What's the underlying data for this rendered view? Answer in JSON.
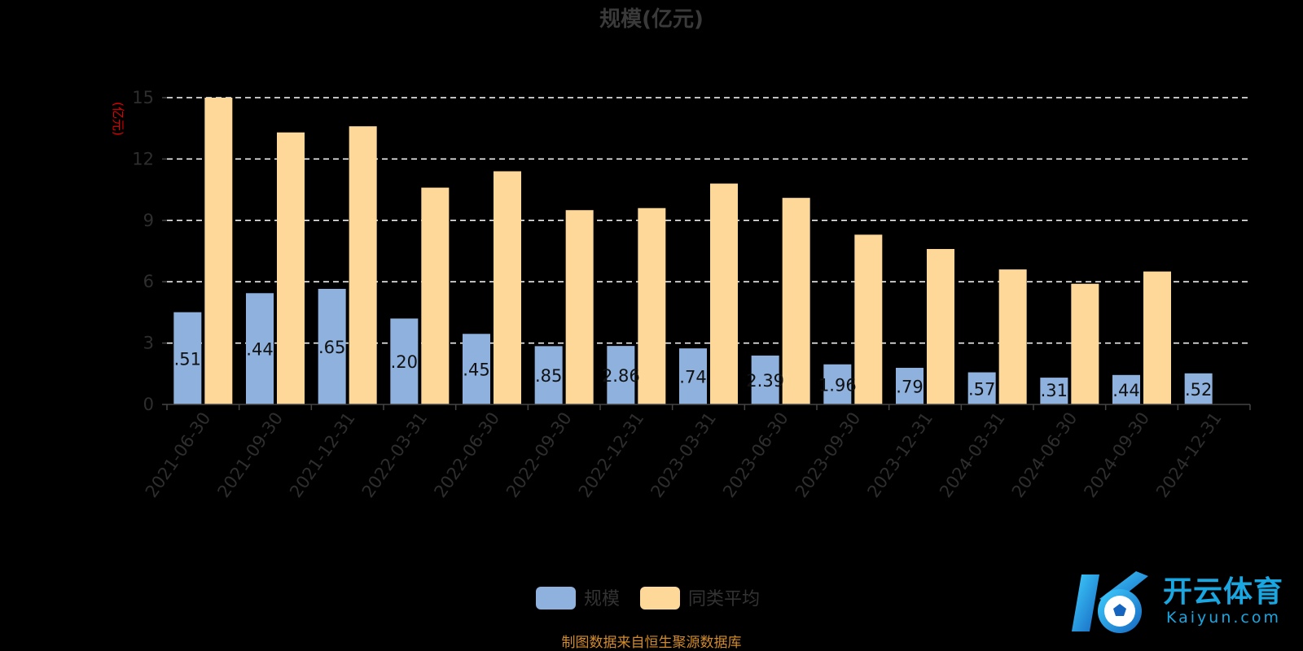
{
  "chart_data": {
    "type": "bar",
    "title": "规模(亿元)",
    "ylabel": "(亿元)",
    "ylim": [
      0,
      15
    ],
    "yticks": [
      "0",
      "3",
      "6",
      "9",
      "12",
      "15"
    ],
    "grid": true,
    "categories": [
      "2021-06-30",
      "2021-09-30",
      "2021-12-31",
      "2022-03-31",
      "2022-06-30",
      "2022-09-30",
      "2022-12-31",
      "2023-03-31",
      "2023-06-30",
      "2023-09-30",
      "2023-12-31",
      "2024-03-31",
      "2024-06-30",
      "2024-09-30",
      "2024-12-31"
    ],
    "series": [
      {
        "name": "规模",
        "color": "#8eb1de",
        "values": [
          4.51,
          5.44,
          5.65,
          4.2,
          3.45,
          2.85,
          2.86,
          2.74,
          2.39,
          1.96,
          1.79,
          1.57,
          1.31,
          1.44,
          1.52
        ],
        "labels": [
          ".51",
          ".44",
          ".65",
          ".20",
          ".45",
          ".85",
          "2.86",
          ".74",
          "2.39",
          "1.96",
          ".79",
          ".57",
          ".31",
          ".44",
          ".52"
        ]
      },
      {
        "name": "同类平均",
        "color": "#fed898",
        "values": [
          15.0,
          13.3,
          13.6,
          10.6,
          11.4,
          9.5,
          9.6,
          10.8,
          10.1,
          8.3,
          7.6,
          6.6,
          5.9,
          6.5,
          null
        ]
      }
    ],
    "legend_position": "bottom-center"
  },
  "footer": {
    "source": "制图数据来自恒生聚源数据库"
  },
  "logo": {
    "name": "开云体育",
    "url_text": "Kaiyun.com",
    "icon": "soccer-ball-logo-icon"
  }
}
